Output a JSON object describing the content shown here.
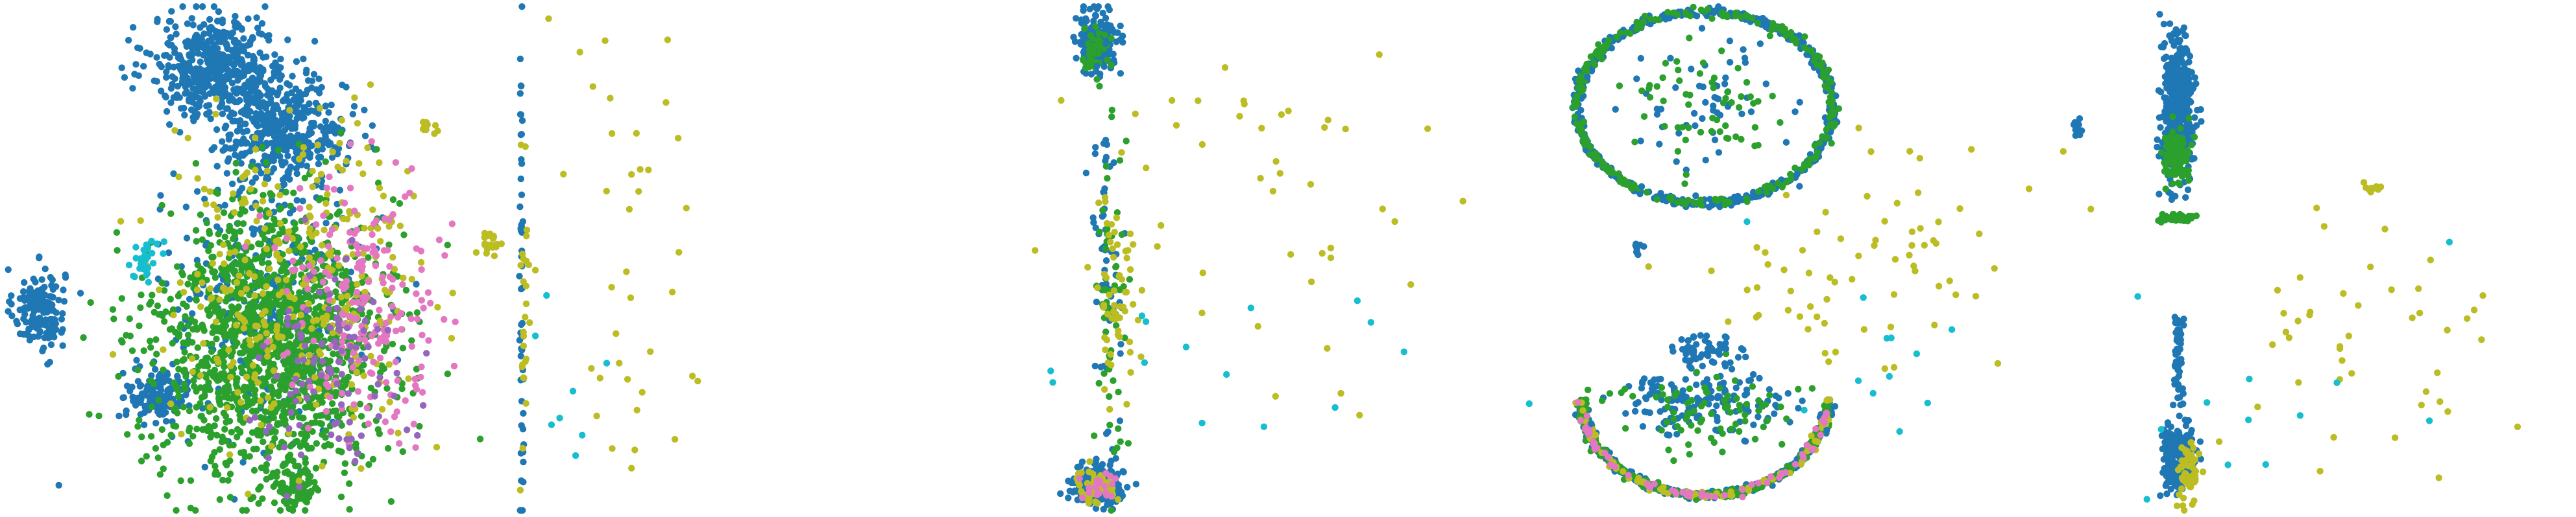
{
  "chart_data": [
    {
      "type": "scatter",
      "title": "",
      "xlabel": "",
      "ylabel": "",
      "xlim": [
        0,
        1
      ],
      "ylim": [
        0,
        1
      ],
      "grid": false,
      "legend": "none",
      "series_colors": [
        "#1f77b4",
        "#2ca02c",
        "#bcbd22",
        "#e377c2",
        "#9467bd",
        "#17becf"
      ],
      "clusters": [
        {
          "color": "#1f77b4",
          "cx": 0.07,
          "cy": 0.4,
          "rx": 0.05,
          "ry": 0.08,
          "n": 160
        },
        {
          "color": "#1f77b4",
          "cx": 0.42,
          "cy": 0.88,
          "rx": 0.13,
          "ry": 0.1,
          "n": 520
        },
        {
          "color": "#1f77b4",
          "cx": 0.55,
          "cy": 0.75,
          "rx": 0.12,
          "ry": 0.1,
          "n": 420
        },
        {
          "color": "#1f77b4",
          "cx": 0.3,
          "cy": 0.23,
          "rx": 0.06,
          "ry": 0.05,
          "n": 140
        },
        {
          "color": "#1f77b4",
          "cx": 0.5,
          "cy": 0.4,
          "rx": 0.2,
          "ry": 0.25,
          "n": 300
        },
        {
          "color": "#2ca02c",
          "cx": 0.52,
          "cy": 0.33,
          "rx": 0.22,
          "ry": 0.28,
          "n": 1500
        },
        {
          "color": "#2ca02c",
          "cx": 0.57,
          "cy": 0.04,
          "rx": 0.04,
          "ry": 0.04,
          "n": 70
        },
        {
          "color": "#bcbd22",
          "cx": 0.58,
          "cy": 0.45,
          "rx": 0.25,
          "ry": 0.3,
          "n": 320
        },
        {
          "color": "#e377c2",
          "cx": 0.7,
          "cy": 0.42,
          "rx": 0.16,
          "ry": 0.24,
          "n": 200
        },
        {
          "color": "#9467bd",
          "cx": 0.64,
          "cy": 0.3,
          "rx": 0.14,
          "ry": 0.2,
          "n": 100
        },
        {
          "color": "#17becf",
          "cx": 0.28,
          "cy": 0.5,
          "rx": 0.03,
          "ry": 0.04,
          "n": 30
        },
        {
          "color": "#bcbd22",
          "cx": 0.95,
          "cy": 0.53,
          "rx": 0.02,
          "ry": 0.03,
          "n": 25
        },
        {
          "color": "#bcbd22",
          "cx": 0.83,
          "cy": 0.76,
          "rx": 0.02,
          "ry": 0.02,
          "n": 12
        }
      ]
    },
    {
      "type": "scatter",
      "title": "",
      "xlabel": "",
      "ylabel": "",
      "xlim": [
        0,
        1
      ],
      "ylim": [
        0,
        1
      ],
      "grid": false,
      "legend": "none",
      "clusters": [
        {
          "color": "#bcbd22",
          "cx": 0.22,
          "cy": 0.5,
          "rx": 0.2,
          "ry": 0.45,
          "n": 40
        },
        {
          "color": "#1f77b4",
          "cx": 0.005,
          "cy": 0.5,
          "rx": 0.004,
          "ry": 0.48,
          "n": 50
        },
        {
          "color": "#bcbd22",
          "cx": 0.01,
          "cy": 0.35,
          "rx": 0.01,
          "ry": 0.25,
          "n": 25
        },
        {
          "color": "#17becf",
          "cx": 0.12,
          "cy": 0.25,
          "rx": 0.1,
          "ry": 0.2,
          "n": 8
        }
      ]
    },
    {
      "type": "scatter",
      "title": "",
      "xlabel": "",
      "ylabel": "",
      "xlim": [
        0,
        1
      ],
      "ylim": [
        0,
        1
      ],
      "grid": false,
      "legend": "none",
      "clusters": [
        {
          "color": "#1f77b4",
          "cx": 0.12,
          "cy": 0.93,
          "rx": 0.04,
          "ry": 0.06,
          "n": 200
        },
        {
          "color": "#2ca02c",
          "cx": 0.12,
          "cy": 0.91,
          "rx": 0.03,
          "ry": 0.04,
          "n": 40
        },
        {
          "color": "#1f77b4",
          "cx": 0.12,
          "cy": 0.05,
          "rx": 0.05,
          "ry": 0.04,
          "n": 200
        },
        {
          "color": "#bcbd22",
          "cx": 0.12,
          "cy": 0.05,
          "rx": 0.04,
          "ry": 0.03,
          "n": 50
        },
        {
          "color": "#e377c2",
          "cx": 0.12,
          "cy": 0.05,
          "rx": 0.04,
          "ry": 0.03,
          "n": 20
        },
        {
          "color": "#1f77b4",
          "cx": 0.14,
          "cy": 0.5,
          "rx": 0.03,
          "ry": 0.35,
          "n": 60
        },
        {
          "color": "#2ca02c",
          "cx": 0.15,
          "cy": 0.45,
          "rx": 0.03,
          "ry": 0.35,
          "n": 60
        },
        {
          "color": "#bcbd22",
          "cx": 0.16,
          "cy": 0.4,
          "rx": 0.04,
          "ry": 0.25,
          "n": 60
        },
        {
          "color": "#bcbd22",
          "cx": 0.45,
          "cy": 0.55,
          "rx": 0.4,
          "ry": 0.35,
          "n": 45
        },
        {
          "color": "#17becf",
          "cx": 0.4,
          "cy": 0.3,
          "rx": 0.4,
          "ry": 0.25,
          "n": 15
        }
      ]
    },
    {
      "type": "scatter",
      "title": "",
      "xlabel": "",
      "ylabel": "",
      "xlim": [
        0,
        1
      ],
      "ylim": [
        0,
        1
      ],
      "grid": false,
      "legend": "none",
      "rings": [
        {
          "color": "#1f77b4",
          "cx": 0.3,
          "cy": 0.8,
          "rx": 0.25,
          "ry": 0.19,
          "n": 600,
          "arc": [
            0,
            360
          ]
        },
        {
          "color": "#2ca02c",
          "cx": 0.3,
          "cy": 0.8,
          "rx": 0.25,
          "ry": 0.19,
          "n": 250,
          "arc": [
            0,
            360
          ]
        },
        {
          "color": "#1f77b4",
          "cx": 0.3,
          "cy": 0.22,
          "rx": 0.24,
          "ry": 0.19,
          "n": 350,
          "arc": [
            180,
            360
          ]
        },
        {
          "color": "#2ca02c",
          "cx": 0.3,
          "cy": 0.22,
          "rx": 0.24,
          "ry": 0.19,
          "n": 250,
          "arc": [
            180,
            360
          ]
        },
        {
          "color": "#bcbd22",
          "cx": 0.3,
          "cy": 0.22,
          "rx": 0.24,
          "ry": 0.19,
          "n": 80,
          "arc": [
            180,
            360
          ]
        },
        {
          "color": "#e377c2",
          "cx": 0.3,
          "cy": 0.22,
          "rx": 0.24,
          "ry": 0.19,
          "n": 60,
          "arc": [
            180,
            360
          ]
        }
      ],
      "clusters": [
        {
          "color": "#1f77b4",
          "cx": 0.3,
          "cy": 0.8,
          "rx": 0.18,
          "ry": 0.12,
          "n": 60
        },
        {
          "color": "#2ca02c",
          "cx": 0.3,
          "cy": 0.8,
          "rx": 0.18,
          "ry": 0.12,
          "n": 60
        },
        {
          "color": "#1f77b4",
          "cx": 0.3,
          "cy": 0.22,
          "rx": 0.16,
          "ry": 0.08,
          "n": 160
        },
        {
          "color": "#2ca02c",
          "cx": 0.3,
          "cy": 0.2,
          "rx": 0.18,
          "ry": 0.08,
          "n": 80
        },
        {
          "color": "#1f77b4",
          "cx": 0.3,
          "cy": 0.32,
          "rx": 0.06,
          "ry": 0.03,
          "n": 50
        },
        {
          "color": "#1f77b4",
          "cx": 0.17,
          "cy": 0.52,
          "rx": 0.01,
          "ry": 0.02,
          "n": 12
        },
        {
          "color": "#bcbd22",
          "cx": 0.58,
          "cy": 0.45,
          "rx": 0.3,
          "ry": 0.25,
          "n": 70
        },
        {
          "color": "#17becf",
          "cx": 0.6,
          "cy": 0.3,
          "rx": 0.25,
          "ry": 0.15,
          "n": 12
        }
      ]
    },
    {
      "type": "scatter",
      "title": "",
      "xlabel": "",
      "ylabel": "",
      "xlim": [
        0,
        1
      ],
      "ylim": [
        0,
        1
      ],
      "grid": false,
      "legend": "none",
      "clusters": [
        {
          "color": "#1f77b4",
          "cx": 0.22,
          "cy": 0.8,
          "rx": 0.03,
          "ry": 0.15,
          "n": 400
        },
        {
          "color": "#2ca02c",
          "cx": 0.22,
          "cy": 0.7,
          "rx": 0.025,
          "ry": 0.06,
          "n": 120
        },
        {
          "color": "#1f77b4",
          "cx": 0.22,
          "cy": 0.1,
          "rx": 0.03,
          "ry": 0.07,
          "n": 200
        },
        {
          "color": "#bcbd22",
          "cx": 0.24,
          "cy": 0.08,
          "rx": 0.02,
          "ry": 0.06,
          "n": 60
        },
        {
          "color": "#1f77b4",
          "cx": 0.22,
          "cy": 0.3,
          "rx": 0.01,
          "ry": 0.09,
          "n": 60
        },
        {
          "color": "#2ca02c",
          "cx": 0.22,
          "cy": 0.58,
          "rx": 0.03,
          "ry": 0.008,
          "n": 50
        },
        {
          "color": "#1f77b4",
          "cx": 0.02,
          "cy": 0.76,
          "rx": 0.01,
          "ry": 0.02,
          "n": 12
        },
        {
          "color": "#bcbd22",
          "cx": 0.55,
          "cy": 0.35,
          "rx": 0.35,
          "ry": 0.3,
          "n": 45
        },
        {
          "color": "#bcbd22",
          "cx": 0.6,
          "cy": 0.64,
          "rx": 0.02,
          "ry": 0.01,
          "n": 10
        },
        {
          "color": "#17becf",
          "cx": 0.45,
          "cy": 0.2,
          "rx": 0.3,
          "ry": 0.2,
          "n": 12
        }
      ]
    }
  ]
}
